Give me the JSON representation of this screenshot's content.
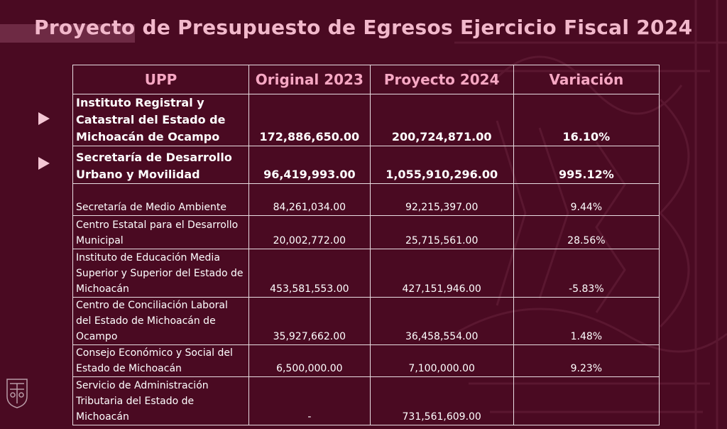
{
  "page": {
    "title": "Proyecto de Presupuesto de Egresos Ejercicio Fiscal 2024"
  },
  "colors": {
    "background": "#4a0a22",
    "title": "#f2b8cb",
    "header_text": "#f6a7c3",
    "cell_text": "#ffffff",
    "bullet": "#f4c6d4"
  },
  "table": {
    "headers": [
      "UPP",
      "Original 2023",
      "Proyecto 2024",
      "Variación"
    ],
    "rows": [
      {
        "upp": "Instituto Registral y Catastral del Estado de Michoacán de Ocampo",
        "original": "172,886,650.00",
        "proyecto": "200,724,871.00",
        "variacion": "16.10%"
      },
      {
        "upp": "Secretaría de Desarrollo Urbano y Movilidad",
        "original": "96,419,993.00",
        "proyecto": "1,055,910,296.00",
        "variacion": "995.12%"
      },
      {
        "upp": "Secretaría de Medio Ambiente",
        "original": "84,261,034.00",
        "proyecto": "92,215,397.00",
        "variacion": "9.44%"
      },
      {
        "upp": "Centro Estatal para el Desarrollo Municipal",
        "original": "20,002,772.00",
        "proyecto": "25,715,561.00",
        "variacion": "28.56%"
      },
      {
        "upp": "Instituto de Educación Media Superior y Superior del Estado de Michoacán",
        "original": "453,581,553.00",
        "proyecto": "427,151,946.00",
        "variacion": "-5.83%"
      },
      {
        "upp": "Centro de Conciliación Laboral del Estado de Michoacán de Ocampo",
        "original": "35,927,662.00",
        "proyecto": "36,458,554.00",
        "variacion": "1.48%"
      },
      {
        "upp": "Consejo Económico y Social del Estado de Michoacán",
        "original": "6,500,000.00",
        "proyecto": "7,100,000.00",
        "variacion": "9.23%"
      },
      {
        "upp": "Servicio de Administración Tributaria del Estado de Michoacán",
        "original": "-",
        "proyecto": "731,561,609.00",
        "variacion": ""
      }
    ]
  },
  "icons": {
    "bullets": "right-triangle-bullet",
    "seal": "state-seal-icon"
  }
}
